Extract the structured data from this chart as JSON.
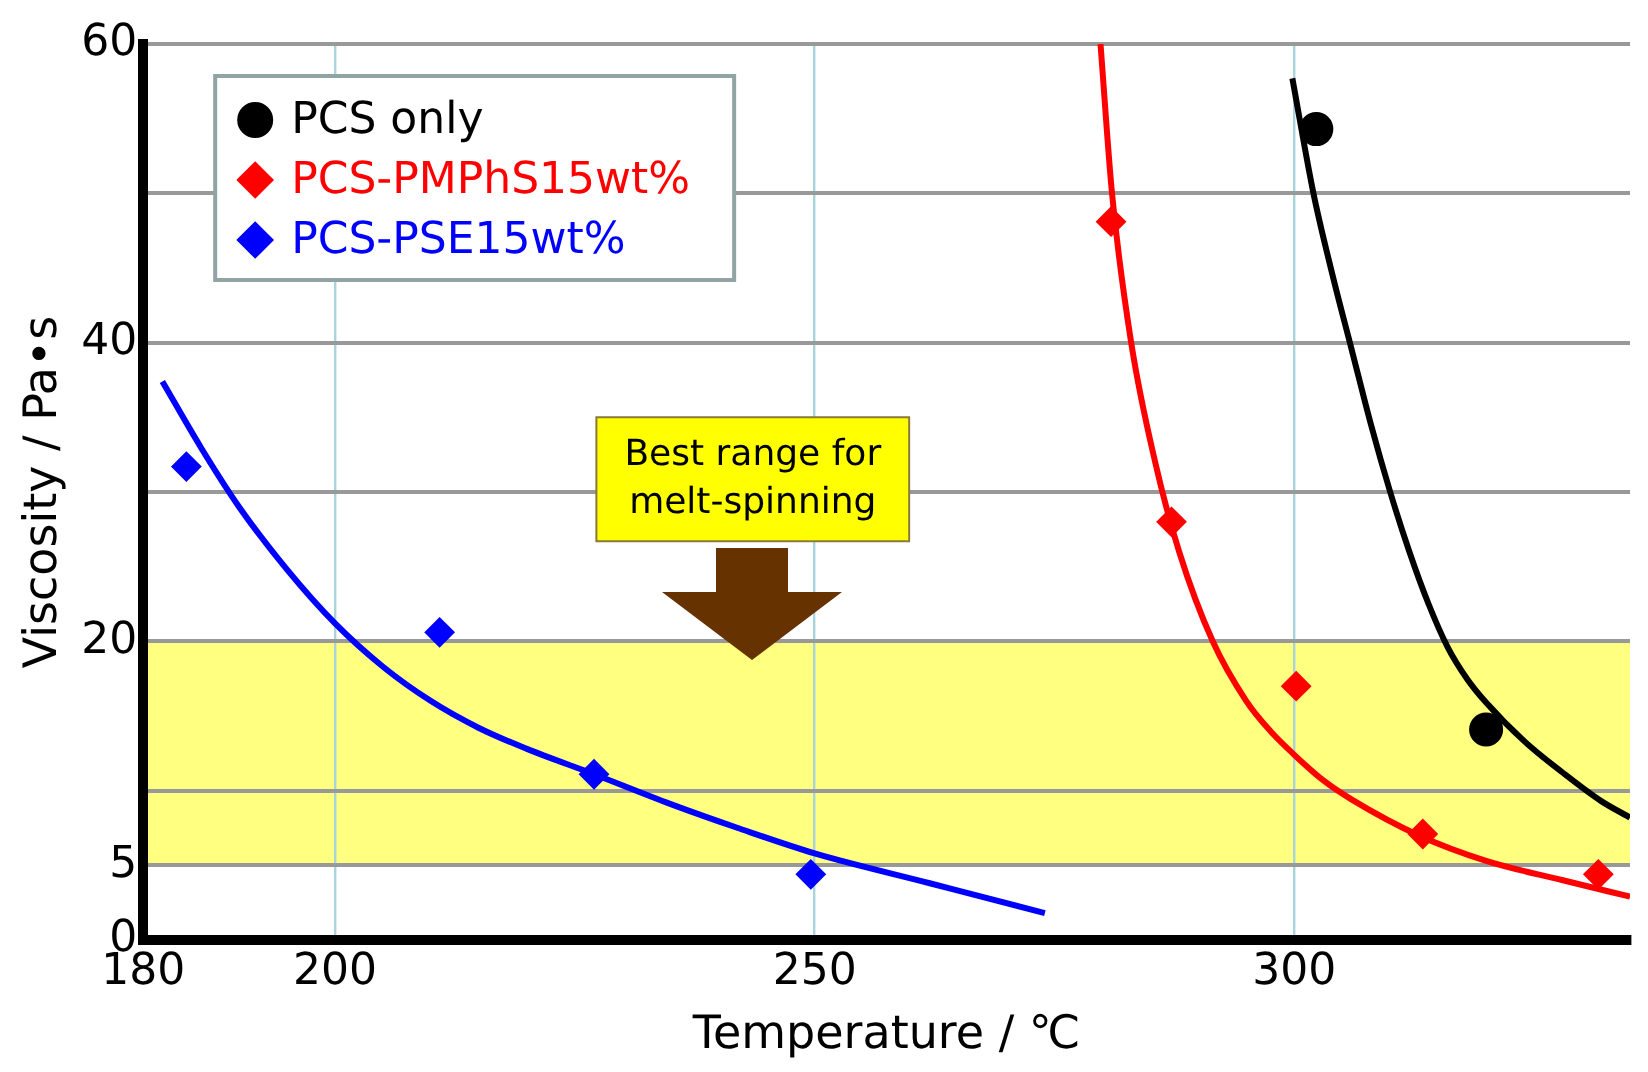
{
  "chart_data": {
    "type": "scatter",
    "xlabel": "Temperature / ℃",
    "ylabel": "Viscosity / Pa•s",
    "xlim": [
      180,
      335
    ],
    "xticks": [
      180,
      200,
      250,
      300
    ],
    "ylim": [
      0,
      60
    ],
    "yticks": [
      0,
      5,
      {
        "value": 10,
        "label": null
      },
      20,
      {
        "value": 30,
        "label": null
      },
      40,
      {
        "value": 50,
        "label": null
      },
      60
    ],
    "grid": true,
    "legend": "top left",
    "bands": [
      {
        "axis": "y",
        "from": 5,
        "to": 20,
        "color": "#ffff80"
      }
    ],
    "annotations": [
      "Best range for\nmelt-spinning"
    ],
    "series": [
      {
        "name": "PCS only",
        "color": "#000000",
        "marker": "circle",
        "x": [
          302.3,
          320
        ],
        "values": [
          54.3,
          14.1
        ]
      },
      {
        "name": "PCS-PMPhS15wt%",
        "color": "#ff0000",
        "marker": "diamond",
        "x": [
          280.9,
          287.2,
          300.2,
          313.4,
          331.7
        ],
        "values": [
          48.1,
          28.0,
          17.0,
          7.1,
          4.4
        ]
      },
      {
        "name": "PCS-PSE15wt%",
        "color": "#0000ff",
        "marker": "diamond",
        "x": [
          184.5,
          210.9,
          227,
          249.6
        ],
        "values": [
          31.7,
          20.6,
          11.1,
          4.4
        ]
      },
      {
        "type": "line",
        "color": "#000000",
        "marker": "none",
        "line_style": "solid",
        "x": [
          299.8,
          302,
          304,
          306,
          308,
          310,
          312,
          314,
          316,
          318,
          320,
          324,
          328,
          332,
          335
        ],
        "values": [
          57.7,
          50,
          44.5,
          39.5,
          34.5,
          30,
          26,
          22.5,
          19.6,
          17.5,
          15.9,
          13.3,
          11.2,
          9.3,
          8.2
        ]
      },
      {
        "type": "line",
        "color": "#ff0000",
        "marker": "none",
        "line_style": "solid",
        "x": [
          279.8,
          281,
          283,
          285.5,
          288,
          291.5,
          295,
          297.5,
          300,
          303,
          306,
          313,
          320,
          328,
          335
        ],
        "values": [
          60,
          50,
          40,
          32,
          26,
          20,
          16,
          14,
          12.4,
          10.7,
          9.4,
          7,
          5.3,
          4,
          2.9
        ]
      },
      {
        "type": "line",
        "color": "#0000ff",
        "marker": "none",
        "line_style": "solid",
        "x": [
          182,
          186,
          190,
          195,
          200,
          205,
          210,
          215,
          220,
          227,
          235,
          242,
          250,
          262,
          274
        ],
        "values": [
          37.4,
          33,
          29,
          24.8,
          21.2,
          18.3,
          16,
          14.2,
          12.8,
          11.1,
          9.1,
          7.5,
          5.8,
          3.8,
          1.8
        ]
      }
    ]
  }
}
